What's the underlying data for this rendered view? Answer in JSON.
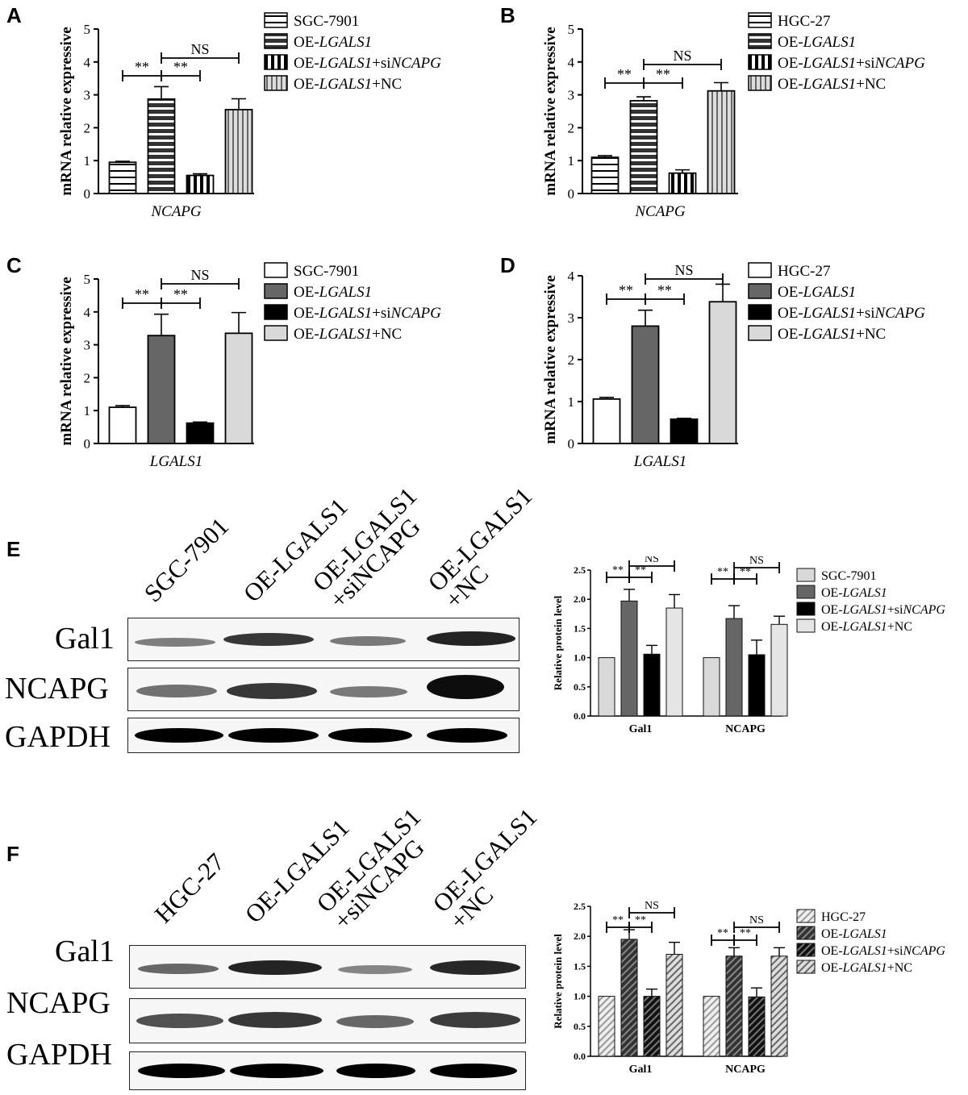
{
  "panels": {
    "A": {
      "letter": "A"
    },
    "B": {
      "letter": "B"
    },
    "C": {
      "letter": "C"
    },
    "D": {
      "letter": "D"
    },
    "E": {
      "letter": "E"
    },
    "F": {
      "letter": "F"
    }
  },
  "blots": {
    "E": {
      "lanes": [
        "SGC-7901",
        "OE-LGALS1",
        "OE-LGALS1\n+siNCAPG",
        "OE-LGALS1\n+NC"
      ],
      "rows": [
        "Gal1",
        "NCAPG",
        "GAPDH"
      ]
    },
    "F": {
      "lanes": [
        "HGC-27",
        "OE-LGALS1",
        "OE-LGALS1\n+siNCAPG",
        "OE-LGALS1\n+NC"
      ],
      "rows": [
        "Gal1",
        "NCAPG",
        "GAPDH"
      ]
    }
  },
  "chart_data": [
    {
      "panel": "A",
      "type": "bar",
      "ylabel": "mRNA relative expressive",
      "xlabel": "NCAPG",
      "ylim": [
        0,
        5
      ],
      "yticks": [
        "0",
        "1",
        "2",
        "3",
        "4",
        "5"
      ],
      "fill": "hstripe",
      "series": [
        {
          "name": "SGC-7901",
          "value": 0.95,
          "err": 0.03
        },
        {
          "name": "OE-LGALS1",
          "value": 2.87,
          "err": 0.38
        },
        {
          "name": "OE-LGALS1+siNCAPG",
          "value": 0.55,
          "err": 0.05
        },
        {
          "name": "OE-LGALS1+NC",
          "value": 2.55,
          "err": 0.33
        }
      ],
      "annotations": [
        "**",
        "**",
        "NS"
      ]
    },
    {
      "panel": "B",
      "type": "bar",
      "ylabel": "mRNA relative expressive",
      "xlabel": "NCAPG",
      "ylim": [
        0,
        5
      ],
      "yticks": [
        "0",
        "1",
        "2",
        "3",
        "4",
        "5"
      ],
      "fill": "hstripe",
      "series": [
        {
          "name": "HGC-27",
          "value": 1.1,
          "err": 0.05
        },
        {
          "name": "OE-LGALS1",
          "value": 2.82,
          "err": 0.12
        },
        {
          "name": "OE-LGALS1+siNCAPG",
          "value": 0.62,
          "err": 0.1
        },
        {
          "name": "OE-LGALS1+NC",
          "value": 3.12,
          "err": 0.25
        }
      ],
      "annotations": [
        "**",
        "**",
        "NS"
      ]
    },
    {
      "panel": "C",
      "type": "bar",
      "ylabel": "mRNA relative expressive",
      "xlabel": "LGALS1",
      "ylim": [
        0,
        5
      ],
      "yticks": [
        "0",
        "1",
        "2",
        "3",
        "4",
        "5"
      ],
      "fill": "solid",
      "series": [
        {
          "name": "SGC-7901",
          "value": 1.1,
          "err": 0.05,
          "color": "#ffffff"
        },
        {
          "name": "OE-LGALS1",
          "value": 3.28,
          "err": 0.65,
          "color": "#666666"
        },
        {
          "name": "OE-LGALS1+siNCAPG",
          "value": 0.62,
          "err": 0.03,
          "color": "#000000"
        },
        {
          "name": "OE-LGALS1+NC",
          "value": 3.35,
          "err": 0.63,
          "color": "#d9d9d9"
        }
      ],
      "annotations": [
        "**",
        "**",
        "NS"
      ]
    },
    {
      "panel": "D",
      "type": "bar",
      "ylabel": "mRNA relative expressive",
      "xlabel": "LGALS1",
      "ylim": [
        0,
        4
      ],
      "yticks": [
        "0",
        "1",
        "2",
        "3",
        "4"
      ],
      "fill": "solid",
      "series": [
        {
          "name": "HGC-27",
          "value": 1.06,
          "err": 0.04,
          "color": "#ffffff"
        },
        {
          "name": "OE-LGALS1",
          "value": 2.8,
          "err": 0.38,
          "color": "#666666"
        },
        {
          "name": "OE-LGALS1+siNCAPG",
          "value": 0.58,
          "err": 0.02,
          "color": "#000000"
        },
        {
          "name": "OE-LGALS1+NC",
          "value": 3.38,
          "err": 0.42,
          "color": "#d9d9d9"
        }
      ],
      "annotations": [
        "**",
        "**",
        "NS"
      ]
    },
    {
      "panel": "E",
      "type": "bar",
      "ylabel": "Relative protein level",
      "ylim": [
        0,
        2.5
      ],
      "yticks": [
        "0.0",
        "0.5",
        "1.0",
        "1.5",
        "2.0",
        "2.5"
      ],
      "categories": [
        "Gal1",
        "NCAPG"
      ],
      "fill": "solid",
      "series": [
        {
          "name": "SGC-7901",
          "values": [
            1.0,
            1.0
          ],
          "errs": [
            0,
            0
          ],
          "color": "#d9d9d9"
        },
        {
          "name": "OE-LGALS1",
          "values": [
            1.97,
            1.67
          ],
          "errs": [
            0.2,
            0.22
          ],
          "color": "#666666"
        },
        {
          "name": "OE-LGALS1+siNCAPG",
          "values": [
            1.06,
            1.05
          ],
          "errs": [
            0.15,
            0.25
          ],
          "color": "#000000"
        },
        {
          "name": "OE-LGALS1+NC",
          "values": [
            1.85,
            1.57
          ],
          "errs": [
            0.23,
            0.14
          ],
          "color": "#e5e5e5"
        }
      ],
      "annotations": [
        "**",
        "**",
        "NS",
        "**",
        "**",
        "NS"
      ]
    },
    {
      "panel": "F",
      "type": "bar",
      "ylabel": "Relative protein level",
      "ylim": [
        0,
        2.5
      ],
      "yticks": [
        "0.0",
        "0.5",
        "1.0",
        "1.5",
        "2.0",
        "2.5"
      ],
      "categories": [
        "Gal1",
        "NCAPG"
      ],
      "fill": "diag",
      "series": [
        {
          "name": "HGC-27",
          "values": [
            1.0,
            1.0
          ],
          "errs": [
            0,
            0
          ]
        },
        {
          "name": "OE-LGALS1",
          "values": [
            1.95,
            1.67
          ],
          "errs": [
            0.16,
            0.14
          ]
        },
        {
          "name": "OE-LGALS1+siNCAPG",
          "values": [
            1.0,
            0.99
          ],
          "errs": [
            0.12,
            0.15
          ]
        },
        {
          "name": "OE-LGALS1+NC",
          "values": [
            1.7,
            1.67
          ],
          "errs": [
            0.2,
            0.14
          ]
        }
      ],
      "annotations": [
        "**",
        "**",
        "NS",
        "**",
        "**",
        "NS"
      ]
    }
  ]
}
